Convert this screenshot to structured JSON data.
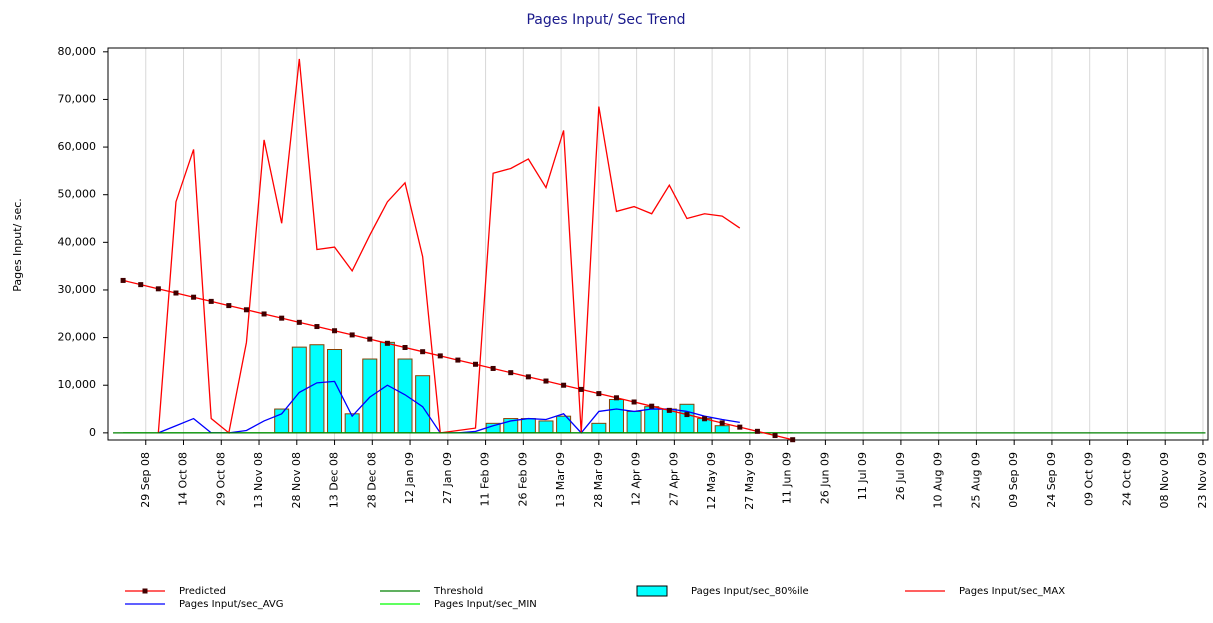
{
  "chart_data": {
    "type": "line",
    "title": "Pages Input/ Sec Trend",
    "y_label": "Pages Input/ sec.",
    "x": [
      "2008-09-20",
      "2008-09-27",
      "2008-10-04",
      "2008-10-11",
      "2008-10-18",
      "2008-10-25",
      "2008-11-01",
      "2008-11-08",
      "2008-11-15",
      "2008-11-22",
      "2008-11-29",
      "2008-12-06",
      "2008-12-13",
      "2008-12-20",
      "2008-12-27",
      "2009-01-03",
      "2009-01-10",
      "2009-01-17",
      "2009-01-24",
      "2009-01-31",
      "2009-02-07",
      "2009-02-14",
      "2009-02-21",
      "2009-02-28",
      "2009-03-07",
      "2009-03-14",
      "2009-03-21",
      "2009-03-28",
      "2009-04-04",
      "2009-04-11",
      "2009-04-18",
      "2009-04-25",
      "2009-05-02",
      "2009-05-09",
      "2009-05-16",
      "2009-05-23",
      "2009-05-30",
      "2009-06-06",
      "2009-06-13"
    ],
    "xlim": [
      "2008-09-14",
      "2009-11-25"
    ],
    "xticks": [
      {
        "value": "2008-09-29",
        "label": "29 Sep 08"
      },
      {
        "value": "2008-10-14",
        "label": "14 Oct 08"
      },
      {
        "value": "2008-10-29",
        "label": "29 Oct 08"
      },
      {
        "value": "2008-11-13",
        "label": "13 Nov 08"
      },
      {
        "value": "2008-11-28",
        "label": "28 Nov 08"
      },
      {
        "value": "2008-12-13",
        "label": "13 Dec 08"
      },
      {
        "value": "2008-12-28",
        "label": "28 Dec 08"
      },
      {
        "value": "2009-01-12",
        "label": "12 Jan 09"
      },
      {
        "value": "2009-01-27",
        "label": "27 Jan 09"
      },
      {
        "value": "2009-02-11",
        "label": "11 Feb 09"
      },
      {
        "value": "2009-02-26",
        "label": "26 Feb 09"
      },
      {
        "value": "2009-03-13",
        "label": "13 Mar 09"
      },
      {
        "value": "2009-03-28",
        "label": "28 Mar 09"
      },
      {
        "value": "2009-04-12",
        "label": "12 Apr 09"
      },
      {
        "value": "2009-04-27",
        "label": "27 Apr 09"
      },
      {
        "value": "2009-05-12",
        "label": "12 May 09"
      },
      {
        "value": "2009-05-27",
        "label": "27 May 09"
      },
      {
        "value": "2009-06-11",
        "label": "11 Jun 09"
      },
      {
        "value": "2009-06-26",
        "label": "26 Jun 09"
      },
      {
        "value": "2009-07-11",
        "label": "11 Jul 09"
      },
      {
        "value": "2009-07-26",
        "label": "26 Jul 09"
      },
      {
        "value": "2009-08-10",
        "label": "10 Aug 09"
      },
      {
        "value": "2009-08-25",
        "label": "25 Aug 09"
      },
      {
        "value": "2009-09-09",
        "label": "09 Sep 09"
      },
      {
        "value": "2009-09-24",
        "label": "24 Sep 09"
      },
      {
        "value": "2009-10-09",
        "label": "09 Oct 09"
      },
      {
        "value": "2009-10-24",
        "label": "24 Oct 09"
      },
      {
        "value": "2009-11-08",
        "label": "08 Nov 09"
      },
      {
        "value": "2009-11-23",
        "label": "23 Nov 09"
      }
    ],
    "ylim": [
      -1500,
      80800
    ],
    "yticks": [
      0,
      {
        "value": 10000,
        "label": "10,000"
      },
      {
        "value": 20000,
        "label": "20,000"
      },
      {
        "value": 30000,
        "label": "30,000"
      },
      {
        "value": 40000,
        "label": "40,000"
      },
      {
        "value": 50000,
        "label": "50,000"
      },
      {
        "value": 60000,
        "label": "60,000"
      },
      {
        "value": 70000,
        "label": "70,000"
      },
      {
        "value": 80000,
        "label": "80,000"
      }
    ],
    "grid": true,
    "series": [
      {
        "name": "Predicted",
        "type": "line",
        "markers": true,
        "color": "#ff0000",
        "marker_color": "#400000",
        "values": [
          32000,
          31120,
          30240,
          29360,
          28480,
          27600,
          26720,
          25840,
          24960,
          24080,
          23200,
          22320,
          21440,
          20560,
          19680,
          18800,
          17920,
          17040,
          16160,
          15280,
          14400,
          13520,
          12640,
          11760,
          10880,
          10000,
          9120,
          8240,
          7360,
          6480,
          5600,
          4720,
          3840,
          2960,
          2080,
          1200,
          320,
          -560,
          -1440
        ]
      },
      {
        "name": "Threshold",
        "type": "line",
        "color": "#008000",
        "x": [
          "2008-09-16",
          "2009-11-24"
        ],
        "values": [
          0,
          0
        ]
      },
      {
        "name": "Pages Input/sec_80%ile",
        "type": "bar",
        "color": "#00ffff",
        "edge_color": "#8b4000",
        "values": [
          null,
          null,
          0,
          0,
          0,
          0,
          0,
          0,
          0,
          5000,
          18000,
          18500,
          17500,
          4000,
          15500,
          19000,
          15500,
          12000,
          0,
          0,
          0,
          2000,
          3000,
          3000,
          2500,
          3500,
          0,
          2000,
          7000,
          4500,
          5500,
          5000,
          6000,
          3000,
          1500,
          0,
          null,
          null,
          null
        ]
      },
      {
        "name": "Pages Input/sec_MAX",
        "type": "line",
        "color": "#ff0000",
        "values": [
          null,
          null,
          0,
          48500,
          59500,
          3000,
          0,
          19000,
          61500,
          44000,
          78500,
          38500,
          39000,
          34000,
          41500,
          48500,
          52500,
          37000,
          0,
          500,
          1000,
          54500,
          55500,
          57500,
          51500,
          63500,
          0,
          68500,
          46500,
          47500,
          46000,
          52000,
          45000,
          46000,
          45500,
          43000,
          null,
          null,
          null
        ]
      },
      {
        "name": "Pages Input/sec_AVG",
        "type": "line",
        "color": "#0000ff",
        "values": [
          null,
          null,
          0,
          1500,
          3000,
          0,
          0,
          500,
          2500,
          4000,
          8500,
          10500,
          10800,
          3500,
          7500,
          10000,
          8000,
          5500,
          0,
          0,
          300,
          1500,
          2500,
          3000,
          2800,
          4000,
          0,
          4500,
          5000,
          4500,
          5000,
          5000,
          4500,
          3500,
          2800,
          2200,
          null,
          null,
          null
        ]
      },
      {
        "name": "Pages Input/sec_MIN",
        "type": "line",
        "color": "#00ff00",
        "values": [
          0,
          0,
          0,
          0,
          0,
          0,
          0,
          0,
          0,
          0,
          0,
          0,
          0,
          0,
          0,
          0,
          0,
          0,
          0,
          0,
          0,
          0,
          0,
          0,
          0,
          0,
          0,
          0,
          0,
          0,
          0,
          0,
          0,
          0,
          0,
          0,
          0,
          0,
          0
        ]
      }
    ]
  }
}
